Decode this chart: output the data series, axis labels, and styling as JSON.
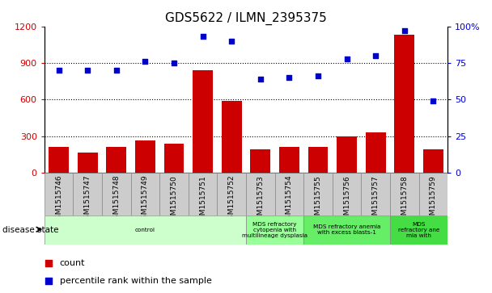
{
  "title": "GDS5622 / ILMN_2395375",
  "samples": [
    "GSM1515746",
    "GSM1515747",
    "GSM1515748",
    "GSM1515749",
    "GSM1515750",
    "GSM1515751",
    "GSM1515752",
    "GSM1515753",
    "GSM1515754",
    "GSM1515755",
    "GSM1515756",
    "GSM1515757",
    "GSM1515758",
    "GSM1515759"
  ],
  "counts": [
    210,
    165,
    210,
    265,
    240,
    840,
    590,
    195,
    210,
    215,
    300,
    335,
    1130,
    190
  ],
  "percentiles": [
    70,
    70,
    70,
    76,
    75,
    93,
    90,
    64,
    65,
    66,
    78,
    80,
    97,
    49
  ],
  "ylim_left": [
    0,
    1200
  ],
  "ylim_right": [
    0,
    100
  ],
  "yticks_left": [
    0,
    300,
    600,
    900,
    1200
  ],
  "yticks_right": [
    0,
    25,
    50,
    75,
    100
  ],
  "bar_color": "#cc0000",
  "dot_color": "#0000cc",
  "tick_bg_color": "#cccccc",
  "disease_groups": [
    {
      "label": "control",
      "start": 0,
      "end": 7,
      "color": "#ccffcc"
    },
    {
      "label": "MDS refractory\ncytopenia with\nmultilineage dysplasia",
      "start": 7,
      "end": 9,
      "color": "#99ff99"
    },
    {
      "label": "MDS refractory anemia\nwith excess blasts-1",
      "start": 9,
      "end": 12,
      "color": "#66ee66"
    },
    {
      "label": "MDS\nrefractory ane\nmia with",
      "start": 12,
      "end": 14,
      "color": "#44dd44"
    }
  ],
  "legend_items": [
    {
      "label": "count",
      "color": "#cc0000"
    },
    {
      "label": "percentile rank within the sample",
      "color": "#0000cc"
    }
  ]
}
